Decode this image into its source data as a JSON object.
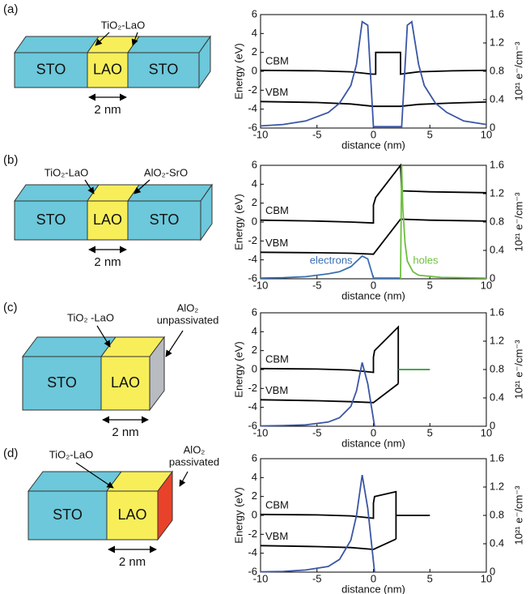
{
  "chart_data": [
    {
      "type": "line",
      "panel": "(a)",
      "schematic": {
        "blocks": [
          {
            "label": "STO",
            "color": "#6cc8da"
          },
          {
            "label": "LAO",
            "color": "#f7ee5a"
          },
          {
            "label": "STO",
            "color": "#6cc8da"
          }
        ],
        "end_color": "#6cc8da",
        "annotations": [
          [
            "TiO₂-LaO"
          ]
        ],
        "width_label": "2 nm"
      },
      "xlabel": "distance (nm)",
      "ylabel": "Energy (eV)",
      "y2label": "10²¹ e⁻/cm⁻³",
      "xlim": [
        -10,
        10
      ],
      "xticks": [
        -10,
        -5,
        0,
        5,
        10
      ],
      "ylim": [
        -6,
        6
      ],
      "yticks": [
        -6,
        -4,
        -2,
        0,
        2,
        4,
        6
      ],
      "y2lim": [
        0,
        1.6
      ],
      "y2ticks": [
        0,
        0.4,
        0.8,
        1.2,
        1.6
      ],
      "series": [
        {
          "name": "CBM",
          "color": "#000000",
          "x": [
            -10,
            -5,
            -2,
            -0.1,
            0.2,
            0.2,
            2.4,
            2.4,
            4,
            7,
            10
          ],
          "values": [
            0.1,
            0.05,
            -0.05,
            -0.3,
            -0.3,
            2,
            2,
            -0.3,
            -0.05,
            0.05,
            0.1
          ]
        },
        {
          "name": "VBM",
          "color": "#000000",
          "x": [
            -10,
            -5,
            -2,
            0,
            2.4,
            4,
            7,
            10
          ],
          "values": [
            -3.2,
            -3.3,
            -3.45,
            -3.7,
            -3.7,
            -3.5,
            -3.35,
            -3.25
          ]
        },
        {
          "color": "#3a55a4",
          "axis": "y2",
          "x": [
            -10,
            -8,
            -6,
            -4,
            -3,
            -2,
            -1.5,
            -1,
            -0.5,
            0,
            2.5,
            3,
            3.4,
            4,
            4.5,
            5.5,
            6.5,
            8,
            10
          ],
          "values": [
            0.03,
            0.05,
            0.1,
            0.22,
            0.35,
            0.6,
            0.9,
            1.5,
            1.45,
            0.02,
            0.02,
            1.45,
            1.5,
            0.9,
            0.6,
            0.35,
            0.22,
            0.1,
            0.05
          ]
        }
      ]
    },
    {
      "type": "line",
      "panel": "(b)",
      "schematic": {
        "blocks": [
          {
            "label": "STO",
            "color": "#6cc8da"
          },
          {
            "label": "LAO",
            "color": "#f7ee5a"
          },
          {
            "label": "STO",
            "color": "#6cc8da"
          }
        ],
        "end_color": "#6cc8da",
        "annotations": [
          [
            "TiO₂-LaO"
          ],
          [
            "AlO₂-SrO"
          ]
        ],
        "width_label": "2 nm"
      },
      "xlabel": "distance (nm)",
      "ylabel": "Energy (eV)",
      "y2label": "10²¹ e⁻/cm⁻³",
      "xlim": [
        -10,
        10
      ],
      "xticks": [
        -10,
        -5,
        0,
        5,
        10
      ],
      "ylim": [
        -6,
        6
      ],
      "yticks": [
        -6,
        -4,
        -2,
        0,
        2,
        4,
        6
      ],
      "y2lim": [
        0,
        1.6
      ],
      "y2ticks": [
        0,
        0.4,
        0.8,
        1.2,
        1.6
      ],
      "series": [
        {
          "name": "CBM",
          "color": "#000000",
          "x": [
            -10,
            -5,
            -2,
            0,
            0,
            0.2,
            2.4,
            2.5,
            5,
            10
          ],
          "values": [
            0.2,
            0.1,
            0,
            -0.1,
            1.8,
            2.6,
            6,
            3.3,
            3.2,
            3.1
          ]
        },
        {
          "name": "VBM",
          "color": "#000000",
          "x": [
            -10,
            -5,
            -2,
            0,
            2.4,
            2.5,
            5,
            10
          ],
          "values": [
            -3.2,
            -3.25,
            -3.3,
            -3.4,
            0.3,
            0.3,
            0.2,
            0.1
          ]
        },
        {
          "name": "electrons",
          "color": "#3a6fb4",
          "axis": "y2",
          "x": [
            -10,
            -8,
            -6,
            -4,
            -3,
            -2,
            -1,
            -0.5,
            0,
            2.4
          ],
          "values": [
            0.01,
            0.015,
            0.03,
            0.07,
            0.1,
            0.17,
            0.32,
            0.28,
            0.01,
            0.01
          ]
        },
        {
          "name": "holes",
          "color": "#6dbf3f",
          "axis": "y2",
          "x": [
            2.4,
            2.5,
            2.6,
            2.8,
            3,
            3.5,
            4,
            6,
            10
          ],
          "values": [
            0,
            1.6,
            1.0,
            0.5,
            0.25,
            0.1,
            0.05,
            0.02,
            0.01
          ]
        }
      ]
    },
    {
      "type": "line",
      "panel": "(c)",
      "schematic": {
        "blocks": [
          {
            "label": "STO",
            "color": "#6cc8da"
          },
          {
            "label": "LAO",
            "color": "#f7ee5a"
          }
        ],
        "end_color": "#b8bbc0",
        "annotations": [
          [
            "TiO₂ -LaO"
          ],
          [
            "AlO₂",
            "unpassivated"
          ]
        ],
        "width_label": "2 nm"
      },
      "xlabel": "distance (nm)",
      "ylabel": "Energy (eV)",
      "y2label": "10²¹ e⁻/cm⁻³",
      "xlim": [
        -10,
        10
      ],
      "xticks": [
        -10,
        -5,
        0,
        5,
        10
      ],
      "ylim": [
        -6,
        6
      ],
      "yticks": [
        -6,
        -4,
        -2,
        0,
        2,
        4,
        6
      ],
      "y2lim": [
        0,
        1.6
      ],
      "y2ticks": [
        0,
        0.4,
        0.8,
        1.2,
        1.6
      ],
      "series": [
        {
          "name": "CBM",
          "color": "#000000",
          "x": [
            -10,
            -5,
            -2,
            0,
            0,
            0.1,
            2.2,
            2.2
          ],
          "values": [
            0.1,
            0.05,
            -0.05,
            -0.3,
            1.3,
            2,
            4.5,
            -1.5
          ]
        },
        {
          "name": "VBM",
          "color": "#000000",
          "x": [
            -10,
            -5,
            -2,
            0,
            2.2
          ],
          "values": [
            -3.2,
            -3.3,
            -3.4,
            -3.5,
            -1.5
          ]
        },
        {
          "color": "#2e9a3a",
          "x": [
            2.2,
            5
          ],
          "values": [
            0,
            0
          ]
        },
        {
          "color": "#3a55a4",
          "axis": "y2",
          "x": [
            -10,
            -8,
            -6,
            -4,
            -3,
            -2,
            -1.5,
            -1,
            -0.5,
            0,
            0.1
          ],
          "values": [
            0.005,
            0.01,
            0.02,
            0.06,
            0.12,
            0.28,
            0.5,
            0.9,
            0.6,
            0.1,
            0
          ]
        }
      ]
    },
    {
      "type": "line",
      "panel": "(d)",
      "schematic": {
        "blocks": [
          {
            "label": "STO",
            "color": "#6cc8da"
          },
          {
            "label": "LAO",
            "color": "#f7ee5a"
          }
        ],
        "end_color": "#e8432a",
        "annotations": [
          [
            "TiO₂-LaO"
          ],
          [
            "AlO₂",
            "passivated"
          ]
        ],
        "width_label": "2 nm"
      },
      "xlabel": "distance (nm)",
      "ylabel": "Energy (eV)",
      "y2label": "10²¹ e⁻/cm⁻³",
      "xlim": [
        -10,
        10
      ],
      "xticks": [
        -10,
        -5,
        0,
        5,
        10
      ],
      "ylim": [
        -6,
        6
      ],
      "yticks": [
        -6,
        -4,
        -2,
        0,
        2,
        4,
        6
      ],
      "y2lim": [
        0,
        1.6
      ],
      "y2ticks": [
        0,
        0.4,
        0.8,
        1.2,
        1.6
      ],
      "series": [
        {
          "name": "CBM",
          "color": "#000000",
          "x": [
            -10,
            -5,
            -2,
            0,
            0,
            0.1,
            2,
            2
          ],
          "values": [
            0.1,
            0.05,
            -0.05,
            -0.3,
            1.3,
            2,
            2.5,
            -2.5
          ]
        },
        {
          "name": "VBM",
          "color": "#000000",
          "x": [
            -10,
            -5,
            -2,
            0,
            2
          ],
          "values": [
            -3.2,
            -3.3,
            -3.4,
            -3.6,
            -2.5
          ]
        },
        {
          "color": "#000000",
          "x": [
            2,
            5
          ],
          "values": [
            0,
            0
          ]
        },
        {
          "color": "#3a55a4",
          "axis": "y2",
          "x": [
            -10,
            -8,
            -6,
            -4,
            -3,
            -2,
            -1.5,
            -1,
            -0.5,
            0,
            0.1
          ],
          "values": [
            0.005,
            0.01,
            0.03,
            0.08,
            0.18,
            0.45,
            0.8,
            1.37,
            0.9,
            0.15,
            0
          ]
        }
      ]
    }
  ]
}
